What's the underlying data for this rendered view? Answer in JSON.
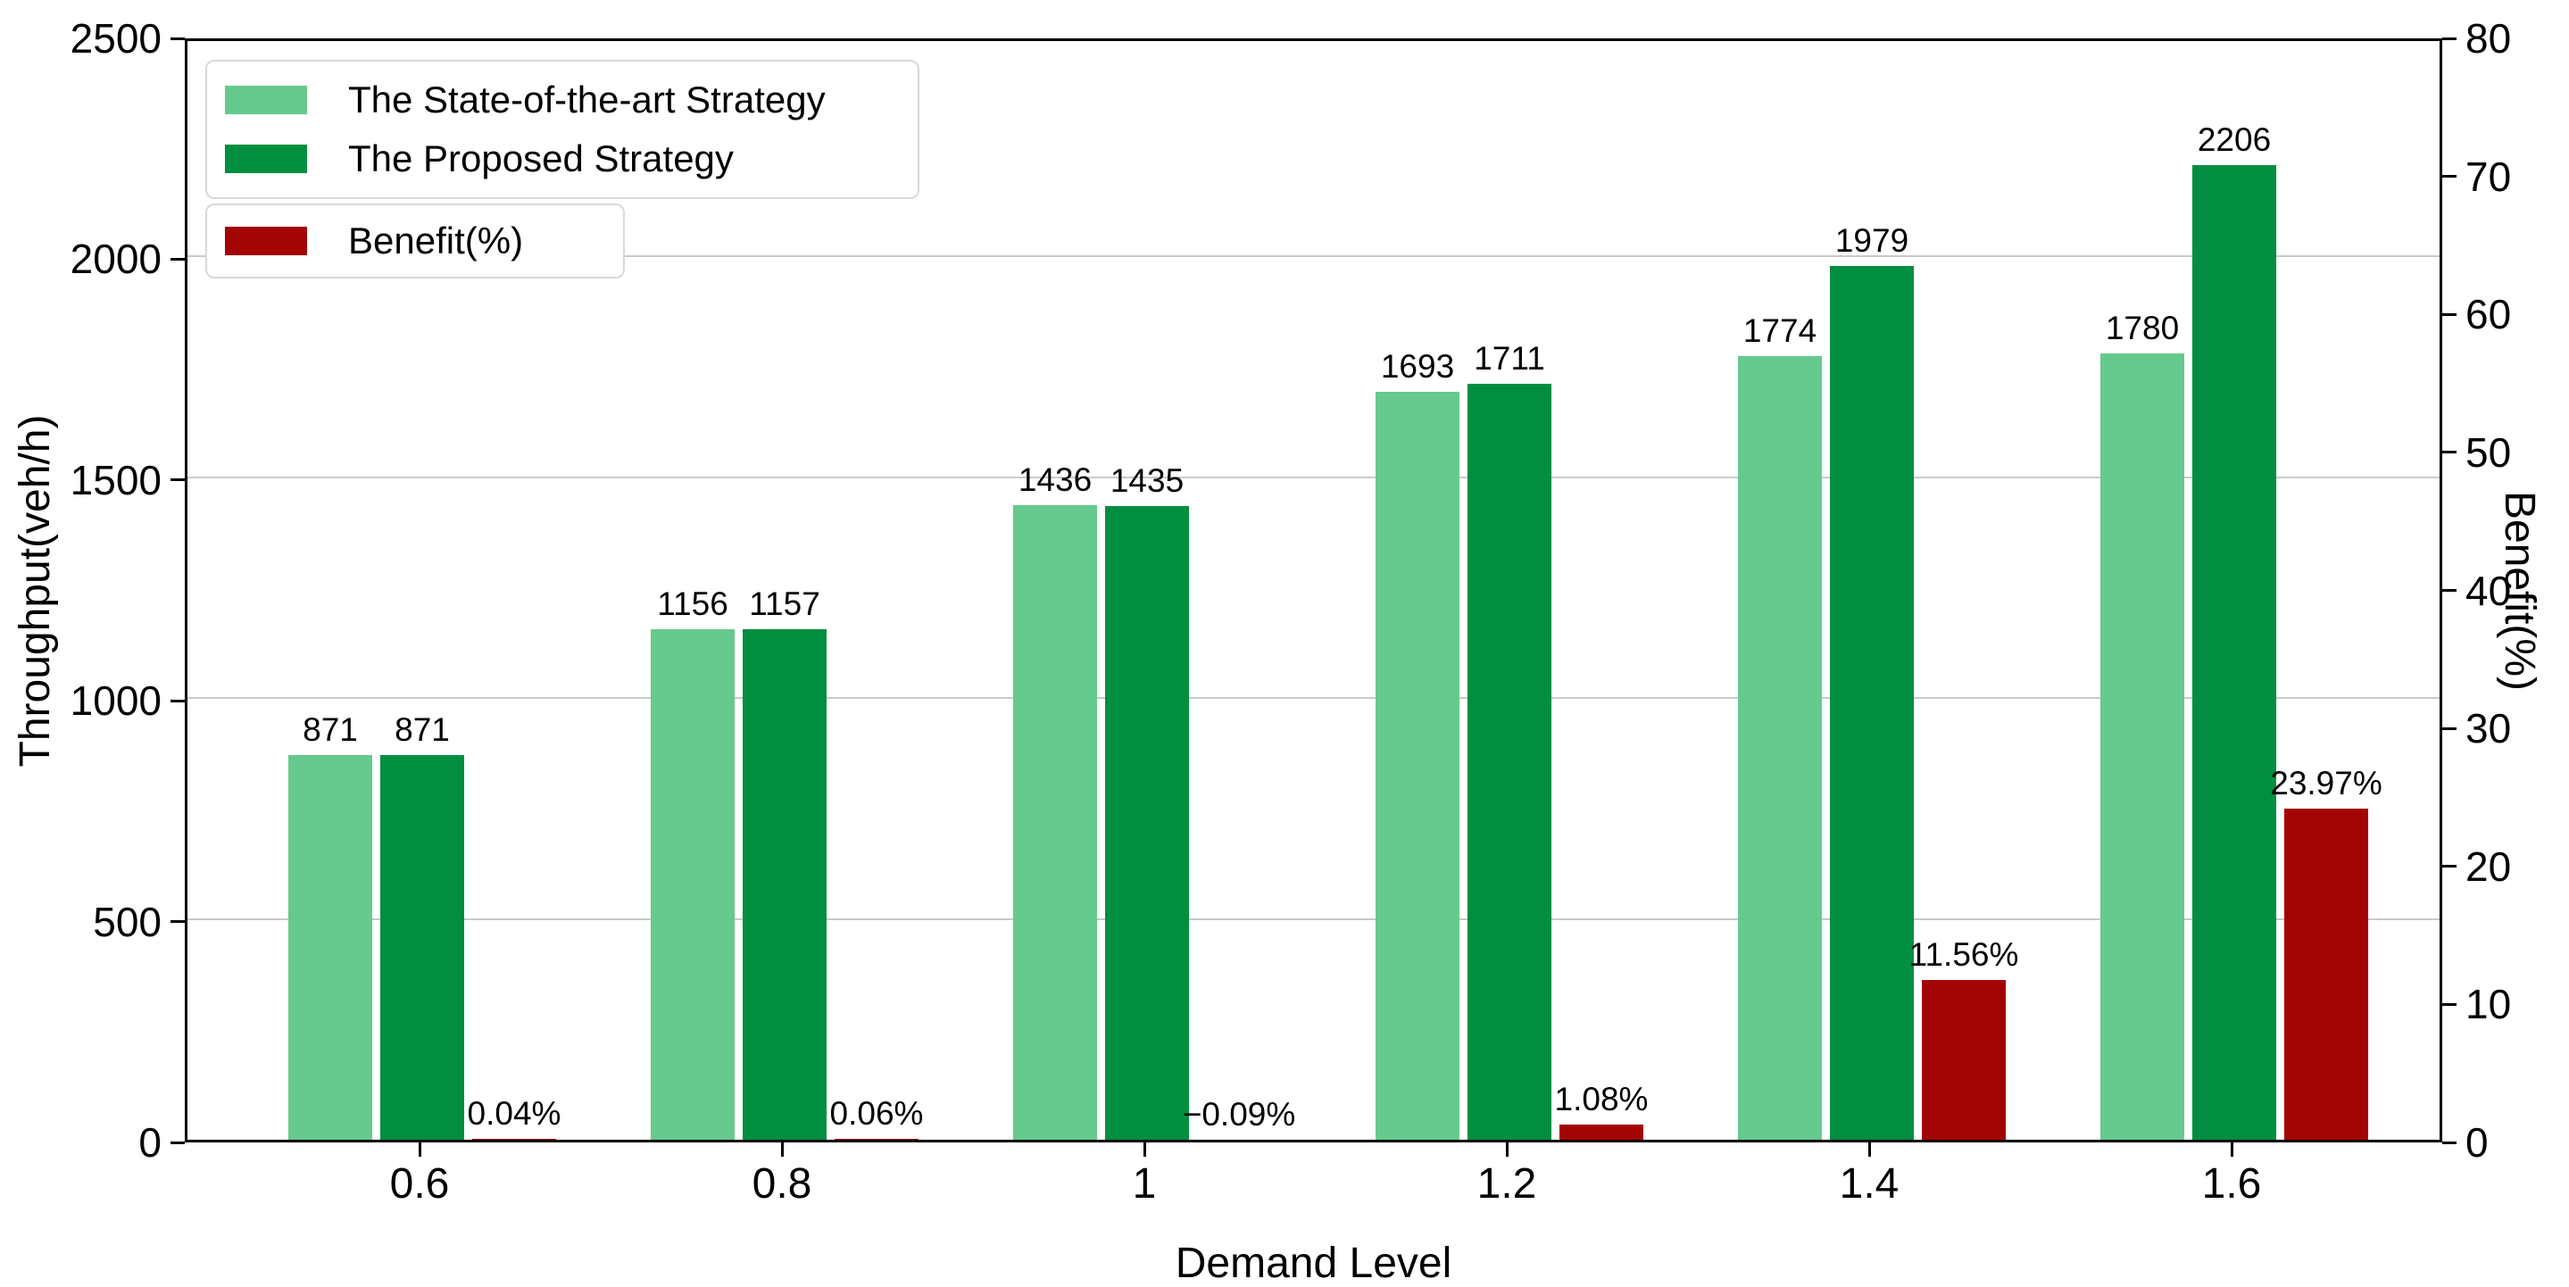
{
  "chart_data": {
    "type": "bar",
    "title": "",
    "xlabel": "Demand Level",
    "ylabel_left": "Throughput(veh/h)",
    "ylabel_right": "Benefit(%)",
    "categories": [
      "0.6",
      "0.8",
      "1",
      "1.2",
      "1.4",
      "1.6"
    ],
    "series": [
      {
        "id": "state-of-the-art",
        "name": "The State-of-the-art Strategy",
        "axis": "left",
        "color": "#66c98d",
        "values": [
          871,
          1156,
          1436,
          1693,
          1774,
          1780
        ],
        "value_labels": [
          "871",
          "1156",
          "1436",
          "1693",
          "1774",
          "1780"
        ]
      },
      {
        "id": "proposed",
        "name": "The Proposed Strategy",
        "axis": "left",
        "color": "#028e40",
        "values": [
          871,
          1157,
          1435,
          1711,
          1979,
          2206
        ],
        "value_labels": [
          "871",
          "1157",
          "1435",
          "1711",
          "1979",
          "2206"
        ]
      },
      {
        "id": "benefit",
        "name": "Benefit(%)",
        "axis": "right",
        "color": "#a30505",
        "values": [
          0.04,
          0.06,
          -0.09,
          1.08,
          11.56,
          23.97
        ],
        "value_labels": [
          "0.04%",
          "0.06%",
          "−0.09%",
          "1.08%",
          "11.56%",
          "23.97%"
        ]
      }
    ],
    "axes": {
      "left": {
        "min": 0,
        "max": 2500,
        "ticks": [
          0,
          500,
          1000,
          1500,
          2000,
          2500
        ],
        "tick_labels": [
          "0",
          "500",
          "1000",
          "1500",
          "2000",
          "2500"
        ]
      },
      "right": {
        "min": 0,
        "max": 80,
        "ticks": [
          0,
          10,
          20,
          30,
          40,
          50,
          60,
          70,
          80
        ],
        "tick_labels": [
          "0",
          "10",
          "20",
          "30",
          "40",
          "50",
          "60",
          "70",
          "80"
        ]
      },
      "grid_values": [
        500,
        1000,
        1500,
        2000
      ]
    },
    "legend": {
      "boxes": [
        {
          "series": [
            0,
            1
          ]
        },
        {
          "series": [
            2
          ]
        }
      ]
    },
    "colors": {
      "grid": "#c9c9c9",
      "spine": "#000000",
      "text": "#000000"
    }
  }
}
